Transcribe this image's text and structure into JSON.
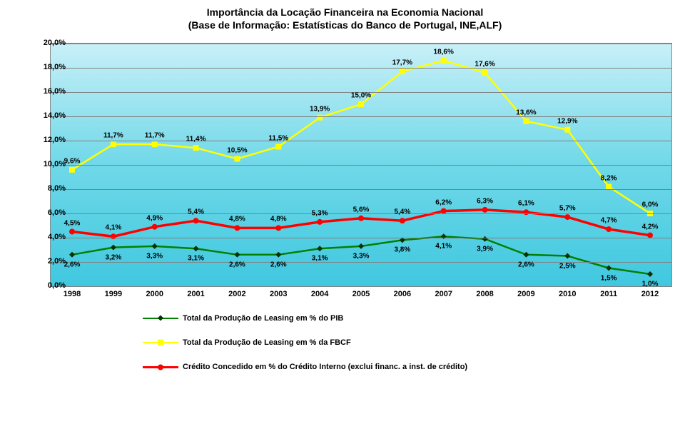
{
  "title_line1": "Importância da Locação Financeira na Economia Nacional",
  "title_line2": "(Base de Informação: Estatísticas do Banco de Portugal, INE,ALF)",
  "chart": {
    "type": "line",
    "ylim": [
      0,
      20
    ],
    "ytick_step": 2,
    "y_suffix": ",0%",
    "categories": [
      "1998",
      "1999",
      "2000",
      "2001",
      "2002",
      "2003",
      "2004",
      "2005",
      "2006",
      "2007",
      "2008",
      "2009",
      "2010",
      "2011",
      "2012"
    ],
    "background_gradient": [
      "#c8f0f8",
      "#70d8e8",
      "#40c8e0"
    ],
    "grid_color": "#808080",
    "series": [
      {
        "name": "Total da Produção de Leasing em % do PIB",
        "color": "#008000",
        "line_width": 2.5,
        "marker": "diamond",
        "marker_color": "#003300",
        "values": [
          2.6,
          3.2,
          3.3,
          3.1,
          2.6,
          2.6,
          3.1,
          3.3,
          3.8,
          4.1,
          3.9,
          2.6,
          2.5,
          1.5,
          1.0
        ],
        "labels": [
          "2,6%",
          "3,2%",
          "3,3%",
          "3,1%",
          "2,6%",
          "2,6%",
          "3,1%",
          "3,3%",
          "3,8%",
          "4,1%",
          "3,9%",
          "2,6%",
          "2,5%",
          "1,5%",
          "1,0%"
        ],
        "label_offset": "below"
      },
      {
        "name": "Total da Produção de Leasing em % da FBCF",
        "color": "#ffff00",
        "line_width": 2.5,
        "marker": "square",
        "marker_color": "#ffff00",
        "values": [
          9.6,
          11.7,
          11.7,
          11.4,
          10.5,
          11.5,
          13.9,
          15.0,
          17.7,
          18.6,
          17.6,
          13.6,
          12.9,
          8.2,
          6.0
        ],
        "labels": [
          "9,6%",
          "11,7%",
          "11,7%",
          "11,4%",
          "10,5%",
          "11,5%",
          "13,9%",
          "15,0%",
          "17,7%",
          "18,6%",
          "17,6%",
          "13,6%",
          "12,9%",
          "8,2%",
          "6,0%"
        ],
        "label_offset": "above"
      },
      {
        "name": "Crédito Concedido em % do Crédito Interno (exclui financ. a inst. de crédito)",
        "color": "#ff0000",
        "line_width": 3.5,
        "marker": "circle",
        "marker_color": "#ff0000",
        "values": [
          4.5,
          4.1,
          4.9,
          5.4,
          4.8,
          4.8,
          5.3,
          5.6,
          5.4,
          6.2,
          6.3,
          6.1,
          5.7,
          4.7,
          4.2
        ],
        "labels": [
          "4,5%",
          "4,1%",
          "4,9%",
          "5,4%",
          "4,8%",
          "4,8%",
          "5,3%",
          "5,6%",
          "5,4%",
          "6,2%",
          "6,3%",
          "6,1%",
          "5,7%",
          "4,7%",
          "4,2%"
        ],
        "label_offset": "above"
      }
    ]
  }
}
